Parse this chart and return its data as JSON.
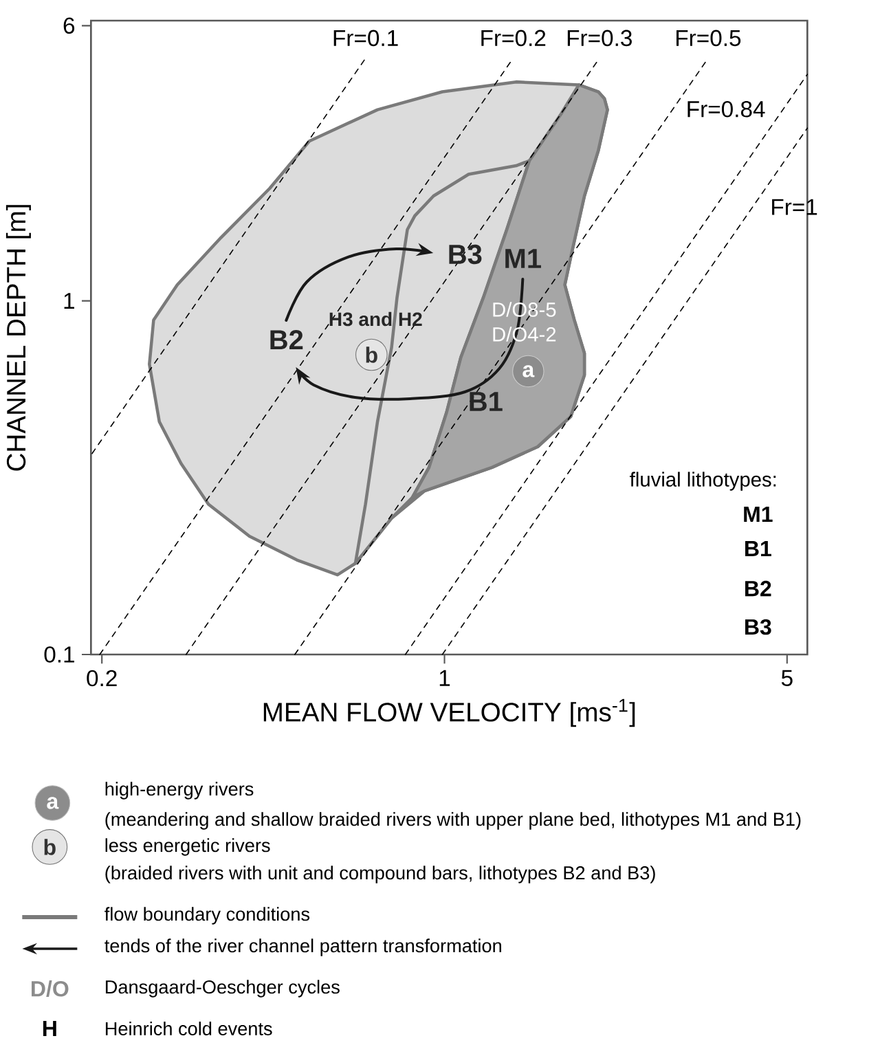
{
  "chart_data": {
    "type": "line",
    "xlabel": "MEAN FLOW VELOCITY [ms$^{-1}$]",
    "ylabel": "CHANNEL DEPTH [m]",
    "log": "xy",
    "xlim": [
      0.19,
      5.5
    ],
    "ylim": [
      0.1,
      6.2
    ],
    "xticks": [
      0.2,
      1,
      5
    ],
    "yticks": [
      0.1,
      1,
      6
    ],
    "series": [
      {
        "type": "area",
        "color": "#dcdcdc",
        "x": [
          0.605,
          0.658,
          0.78,
          0.91,
          1.25,
          1.55,
          1.81,
          1.93,
          1.93,
          1.84,
          1.76,
          1.81,
          1.93,
          2.06,
          2.15,
          2.12,
          2.06,
          1.88,
          1.4,
          0.99,
          0.73,
          0.53,
          0.44,
          0.35,
          0.285,
          0.255,
          0.25,
          0.262,
          0.29,
          0.33,
          0.4,
          0.5
        ],
        "values": [
          0.168,
          0.181,
          0.243,
          0.29,
          0.338,
          0.387,
          0.471,
          0.617,
          0.711,
          0.883,
          1.11,
          1.33,
          1.98,
          2.66,
          3.47,
          3.73,
          3.9,
          4.08,
          4.16,
          3.9,
          3.47,
          2.83,
          2.08,
          1.51,
          1.11,
          0.883,
          0.662,
          0.455,
          0.347,
          0.266,
          0.216,
          0.185
        ]
      },
      {
        "type": "area",
        "color": "#dcdcdc",
        "x": [
          0.658,
          0.69,
          0.73,
          0.78,
          0.8,
          0.84,
          0.87,
          0.95,
          1.12,
          1.4,
          1.49,
          1.34,
          1.2,
          1.08,
          1.01,
          0.93,
          0.86,
          0.78
        ],
        "values": [
          0.181,
          0.266,
          0.455,
          0.738,
          1.02,
          1.59,
          1.74,
          1.98,
          2.28,
          2.41,
          2.49,
          1.59,
          1.02,
          0.692,
          0.484,
          0.338,
          0.278,
          0.243
        ]
      },
      {
        "type": "area",
        "color": "#a6a6a6",
        "x": [
          1.88,
          1.73,
          1.49,
          1.34,
          1.2,
          1.08,
          1.01,
          0.93,
          0.86,
          0.91,
          1.25,
          1.55,
          1.81,
          1.93,
          1.93,
          1.84,
          1.76,
          1.81,
          1.93,
          2.06,
          2.15,
          2.12,
          2.06
        ],
        "values": [
          4.08,
          3.38,
          2.49,
          1.59,
          1.02,
          0.692,
          0.484,
          0.338,
          0.278,
          0.29,
          0.338,
          0.387,
          0.471,
          0.617,
          0.711,
          0.883,
          1.11,
          1.33,
          1.98,
          2.66,
          3.47,
          3.73,
          3.9
        ]
      },
      {
        "name": "Fr=0.1",
        "color": "#000000",
        "line_style": "dashed",
        "x": [
          0.191,
          0.69
        ],
        "values": [
          0.37,
          4.85
        ]
      },
      {
        "name": "Fr=0.2",
        "color": "#000000",
        "line_style": "dashed",
        "x": [
          0.198,
          1.38
        ],
        "values": [
          0.1,
          4.85
        ]
      },
      {
        "name": "Fr=0.3",
        "color": "#000000",
        "line_style": "dashed",
        "x": [
          0.297,
          2.07
        ],
        "values": [
          0.1,
          4.85
        ]
      },
      {
        "name": "Fr=0.5",
        "color": "#000000",
        "line_style": "dashed",
        "x": [
          0.495,
          3.45
        ],
        "values": [
          0.1,
          4.85
        ]
      },
      {
        "name": "Fr=0.84",
        "color": "#000000",
        "line_style": "dashed",
        "x": [
          0.832,
          5.5
        ],
        "values": [
          0.1,
          4.37
        ]
      },
      {
        "name": "Fr=1",
        "color": "#000000",
        "line_style": "dashed",
        "x": [
          0.99,
          5.5
        ],
        "values": [
          0.1,
          3.08
        ]
      }
    ],
    "annotations": [
      "B2",
      "B3",
      "M1",
      "B1",
      "H3 and H2",
      "D/O8-5",
      "D/O4-2",
      "a",
      "b",
      "fluvial lithotypes:",
      "M1",
      "B1",
      "B2",
      "B3",
      "a",
      "high-energy rivers",
      "(meandering and shallow braided rivers with upper plane bed, lithotypes M1 and B1)",
      "b",
      "less energetic rivers",
      "(braided rivers with unit and compound bars, lithotypes B2 and B3)",
      "flow boundary conditions",
      "tends of the river channel pattern transformation",
      "D/O",
      "Dansgaard-Oeschger cycles",
      "H",
      "Heinrich cold events"
    ]
  }
}
